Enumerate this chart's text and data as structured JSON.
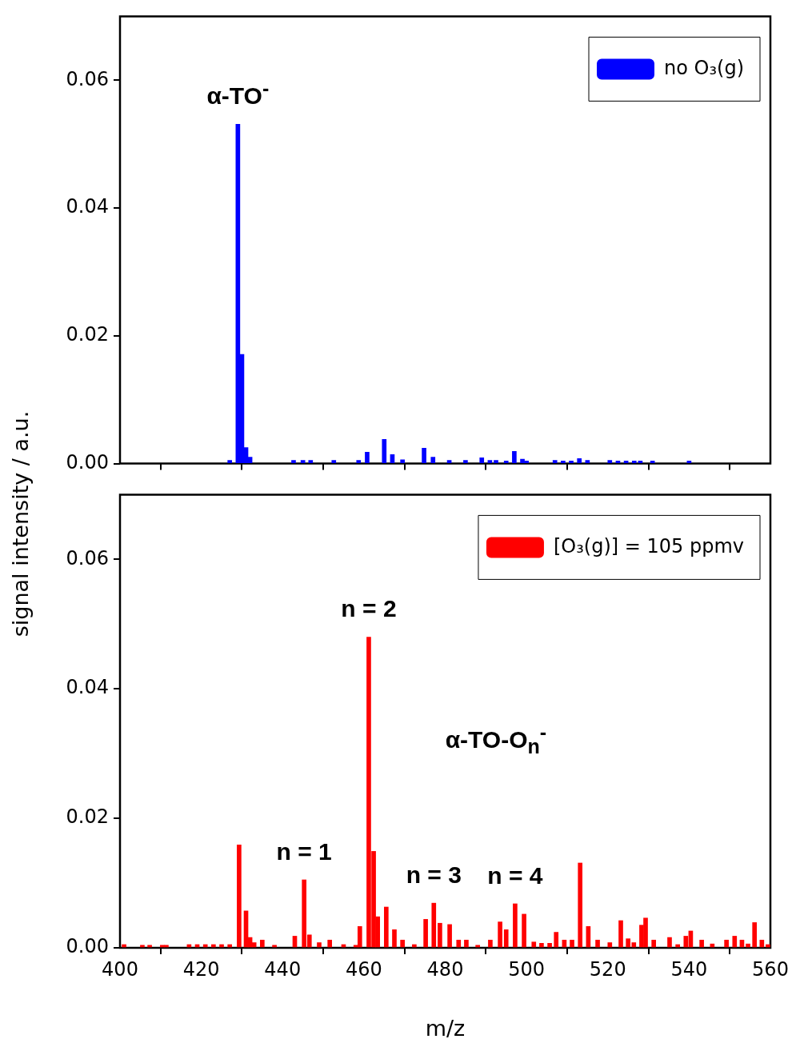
{
  "chart_data": [
    {
      "type": "bar",
      "ylabel": "signal intensity / a.u.",
      "legend": "top right",
      "tick_labels": "y",
      "xlim": [
        400,
        560
      ],
      "xticks": [
        400,
        420,
        440,
        460,
        480,
        500,
        520,
        540,
        560
      ],
      "ylim": [
        0,
        0.07
      ],
      "yticks": [
        {
          "value": 0,
          "label": "0.00"
        },
        {
          "value": 0.02,
          "label": "0.02"
        },
        {
          "value": 0.04,
          "label": "0.04"
        },
        {
          "value": 0.06,
          "label": "0.06"
        }
      ],
      "annotations": [
        {
          "text": "α-TO$^{-}$",
          "x": 429,
          "y": 0.0531
        }
      ],
      "series": [
        {
          "name": "no O₃(g)",
          "color": "#0000ff",
          "x": [
            427,
            429,
            430,
            431,
            432,
            442.7,
            445,
            446.9,
            452.6,
            458.7,
            460.8,
            465,
            467,
            469.5,
            474.8,
            477,
            481,
            485,
            489,
            491,
            492.5,
            495,
            497,
            499,
            500,
            507,
            509,
            511,
            513,
            515,
            520.5,
            522.5,
            524.5,
            526.5,
            528,
            531,
            540
          ],
          "values": [
            0.0005,
            0.0531,
            0.0171,
            0.0025,
            0.001,
            0.0005,
            0.0005,
            0.0005,
            0.0005,
            0.0005,
            0.0018,
            0.0038,
            0.0014,
            0.0006,
            0.0024,
            0.001,
            0.0005,
            0.0005,
            0.0009,
            0.0005,
            0.0005,
            0.0004,
            0.0019,
            0.0007,
            0.0004,
            0.0005,
            0.0004,
            0.0004,
            0.0008,
            0.0005,
            0.0005,
            0.0004,
            0.0004,
            0.0004,
            0.0004,
            0.0004,
            0.0004
          ]
        }
      ]
    },
    {
      "type": "bar",
      "xlabel": "m/z",
      "legend": "top right",
      "xlim": [
        400,
        560
      ],
      "xticks": [
        400,
        420,
        440,
        460,
        480,
        500,
        520,
        540,
        560
      ],
      "ylim": [
        0,
        0.07
      ],
      "yticks": [
        {
          "value": 0,
          "label": "0.00"
        },
        {
          "value": 0.02,
          "label": "0.02"
        },
        {
          "value": 0.04,
          "label": "0.04"
        },
        {
          "value": 0.06,
          "label": "0.06"
        }
      ],
      "annotations": [
        {
          "text": "n = 2",
          "x": 461.2,
          "y": 0.048
        },
        "α-TO-O$_{n}$$^{-}$",
        {
          "text": "n = 1",
          "x": 445.3,
          "y": 0.0105
        },
        {
          "text": "n = 3",
          "x": 477.2,
          "y": 0.0069
        },
        {
          "text": "n = 4",
          "x": 497.2,
          "y": 0.0068
        }
      ],
      "series": [
        {
          "name": "[O₃(g)] = 105 ppmv",
          "color": "#ff0000",
          "x": [
            401,
            405.5,
            407.3,
            410.4,
            411.4,
            417,
            419,
            421,
            423,
            425,
            427,
            429.3,
            431,
            432,
            433,
            435,
            438,
            443,
            445.3,
            446.6,
            449,
            451.6,
            455,
            458,
            459,
            461.2,
            462.4,
            463.4,
            465.5,
            467.5,
            469.5,
            472.4,
            475.2,
            477.2,
            478.7,
            481.1,
            483.3,
            485.2,
            488,
            491.1,
            493.5,
            495,
            497.2,
            499.4,
            501.8,
            503.7,
            505.7,
            507.3,
            509.3,
            511.2,
            513.2,
            515.2,
            517.5,
            520.5,
            523.2,
            525,
            526.4,
            528.3,
            529.3,
            531.3,
            535.2,
            537.2,
            539.2,
            540.4,
            543.1,
            545.7,
            549.2,
            551.2,
            553,
            554.5,
            556.1,
            557.9,
            559.4
          ],
          "values": [
            0.0005,
            0.0004,
            0.0004,
            0.0004,
            0.0004,
            0.0005,
            0.0005,
            0.0005,
            0.0005,
            0.0005,
            0.0005,
            0.0159,
            0.0057,
            0.0016,
            0.0008,
            0.0012,
            0.0004,
            0.0018,
            0.0105,
            0.002,
            0.0008,
            0.0012,
            0.0005,
            0.0004,
            0.0033,
            0.048,
            0.0149,
            0.0048,
            0.0063,
            0.0028,
            0.0012,
            0.0005,
            0.0044,
            0.0069,
            0.0038,
            0.0036,
            0.0012,
            0.0012,
            0.0004,
            0.0012,
            0.004,
            0.0028,
            0.0068,
            0.0052,
            0.0009,
            0.0007,
            0.0007,
            0.0024,
            0.0012,
            0.0012,
            0.0131,
            0.0033,
            0.0012,
            0.0008,
            0.0042,
            0.0014,
            0.0008,
            0.0035,
            0.0046,
            0.0012,
            0.0016,
            0.0005,
            0.0018,
            0.0026,
            0.0012,
            0.0006,
            0.0012,
            0.0018,
            0.0012,
            0.0006,
            0.0039,
            0.0012,
            0.0005
          ]
        }
      ]
    }
  ]
}
